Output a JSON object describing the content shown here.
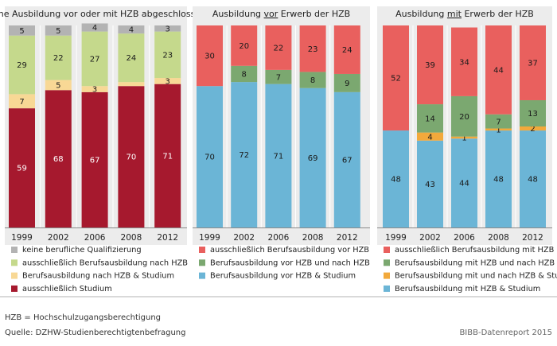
{
  "chart_data": [
    {
      "type": "bar",
      "stacked": true,
      "title": "keine Ausbildung vor oder mit HZB abgeschlossen",
      "title_parts": [
        {
          "text": "keine Ausbildung vor oder mit HZB abgeschlossen",
          "underline": false
        }
      ],
      "categories": [
        "1999",
        "2002",
        "2006",
        "2008",
        "2012"
      ],
      "ylim": [
        0,
        100
      ],
      "series": [
        {
          "name": "ausschließlich Studium",
          "color": "#A6192E",
          "values": [
            59,
            68,
            67,
            70,
            71
          ]
        },
        {
          "name": "Berufsausbildung nach HZB & Studium",
          "color": "#F8D895",
          "values": [
            7,
            5,
            3,
            2,
            3
          ]
        },
        {
          "name": "ausschließlich Berufsausbildung nach HZB",
          "color": "#C5D98C",
          "values": [
            29,
            22,
            27,
            24,
            23
          ]
        },
        {
          "name": "keine berufliche Qualifizierung",
          "color": "#B3B3B3",
          "values": [
            5,
            5,
            4,
            4,
            3
          ]
        }
      ],
      "labels": [
        [
          "59",
          "68",
          "67",
          "70",
          "71"
        ],
        [
          "7",
          "5",
          "3",
          "",
          "3"
        ],
        [
          "29",
          "22",
          "27",
          "24",
          "23"
        ],
        [
          "5",
          "5",
          "4",
          "4",
          "3"
        ]
      ],
      "legend": [
        {
          "name": "keine berufliche Qualifizierung",
          "color": "#B3B3B3"
        },
        {
          "name": "ausschließlich Berufsausbildung nach HZB",
          "color": "#C5D98C"
        },
        {
          "name": "Berufsausbildung nach HZB & Studium",
          "color": "#F8D895"
        },
        {
          "name": "ausschließlich Studium",
          "color": "#A6192E"
        }
      ]
    },
    {
      "type": "bar",
      "stacked": true,
      "title": "Ausbildung vor Erwerb der HZB",
      "title_parts": [
        {
          "text": "Ausbildung ",
          "underline": false
        },
        {
          "text": "vor",
          "underline": true
        },
        {
          "text": " Erwerb der HZB",
          "underline": false
        }
      ],
      "categories": [
        "1999",
        "2002",
        "2006",
        "2008",
        "2012"
      ],
      "ylim": [
        0,
        100
      ],
      "series": [
        {
          "name": "Berufsausbildung vor HZB & Studium",
          "color": "#6BB5D6",
          "values": [
            70,
            72,
            71,
            69,
            67
          ]
        },
        {
          "name": "Berufsausbildung vor HZB und nach HZB",
          "color": "#7BA870",
          "values": [
            0,
            8,
            7,
            8,
            9
          ]
        },
        {
          "name": "ausschließlich Berufsausbildung vor HZB",
          "color": "#E9605E",
          "values": [
            30,
            20,
            22,
            23,
            24
          ]
        }
      ],
      "labels": [
        [
          "70",
          "72",
          "71",
          "69",
          "67"
        ],
        [
          "",
          "8",
          "7",
          "8",
          "9"
        ],
        [
          "30",
          "20",
          "22",
          "23",
          "24"
        ]
      ],
      "legend": [
        {
          "name": "ausschließlich Berufsausbildung vor HZB",
          "color": "#E9605E"
        },
        {
          "name": "Berufsausbildung vor HZB und nach HZB",
          "color": "#7BA870"
        },
        {
          "name": "Berufsausbildung vor HZB & Studium",
          "color": "#6BB5D6"
        }
      ]
    },
    {
      "type": "bar",
      "stacked": true,
      "title": "Ausbildung mit Erwerb der HZB",
      "title_parts": [
        {
          "text": "Ausbildung ",
          "underline": false
        },
        {
          "text": "mit",
          "underline": true
        },
        {
          "text": " Erwerb der HZB",
          "underline": false
        }
      ],
      "categories": [
        "1999",
        "2002",
        "2006",
        "2008",
        "2012"
      ],
      "ylim": [
        0,
        100
      ],
      "series": [
        {
          "name": "Berufsausbildung mit HZB & Studium",
          "color": "#6BB5D6",
          "values": [
            48,
            43,
            44,
            48,
            48
          ]
        },
        {
          "name": "Berufsausbildung mit und nach HZB & Studium",
          "color": "#F2A93B",
          "values": [
            0,
            4,
            1,
            1,
            2
          ]
        },
        {
          "name": "Berufsausbildung mit HZB und nach HZB",
          "color": "#7BA870",
          "values": [
            0,
            14,
            20,
            7,
            13
          ]
        },
        {
          "name": "ausschließlich Berufsausbildung mit HZB",
          "color": "#E9605E",
          "values": [
            52,
            39,
            34,
            44,
            37
          ]
        }
      ],
      "labels": [
        [
          "48",
          "43",
          "44",
          "48",
          "48"
        ],
        [
          "",
          "4",
          "1",
          "1",
          "2"
        ],
        [
          "",
          "14",
          "20",
          "7",
          "13"
        ],
        [
          "52",
          "39",
          "34",
          "44",
          "37"
        ]
      ],
      "legend": [
        {
          "name": "ausschließlich Berufsausbildung mit HZB",
          "color": "#E9605E"
        },
        {
          "name": "Berufsausbildung mit HZB und nach HZB",
          "color": "#7BA870"
        },
        {
          "name": "Berufsausbildung mit und nach HZB & Studium",
          "color": "#F2A93B"
        },
        {
          "name": "Berufsausbildung mit HZB & Studium",
          "color": "#6BB5D6"
        }
      ]
    }
  ],
  "footnotes": {
    "abbreviation": "HZB = Hochschulzugangsberechtigung",
    "source": "Quelle: DZHW-Studienberechtigtenbefragung",
    "publisher": "BIBB-Datenreport 2015"
  }
}
